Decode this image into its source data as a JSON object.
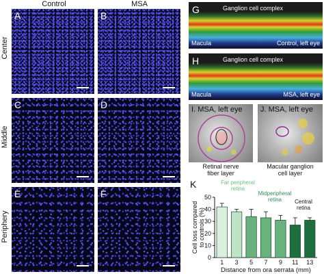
{
  "columns": {
    "control": "Control",
    "msa": "MSA"
  },
  "rows": {
    "center": "Center",
    "middle": "Middle",
    "periphery": "Periphery"
  },
  "panels": {
    "A": "A",
    "B": "B",
    "C": "C",
    "D": "D",
    "E": "E",
    "F": "F",
    "G": "G",
    "H": "H",
    "I": "I.",
    "J": "J.",
    "K": "K"
  },
  "oct_g": {
    "label": "Ganglion cell complex",
    "left": "Macula",
    "right": "Control, left eye"
  },
  "oct_h": {
    "label": "Ganglion cell complex",
    "left": "Macula",
    "right": "MSA, left eye"
  },
  "fundus_i": {
    "title": "MSA, left eye",
    "caption_line1": "Retinal nerve",
    "caption_line2": "fiber layer"
  },
  "fundus_j": {
    "title": "MSA, left eye",
    "caption_line1": "Macular ganglion",
    "caption_line2": "cell layer"
  },
  "chart_data": {
    "type": "bar",
    "categories": [
      "1",
      "3",
      "5",
      "7",
      "9",
      "11",
      "13"
    ],
    "values": [
      42,
      38,
      34,
      33,
      31,
      27,
      31
    ],
    "errors": [
      3,
      2,
      6,
      5,
      4,
      6,
      2
    ],
    "bar_colors": [
      "#d9f0df",
      "#bfe3c7",
      "#69b27e",
      "#69b27e",
      "#69b27e",
      "#1f6e3d",
      "#1f6e3d"
    ],
    "ylim": [
      0,
      50
    ],
    "yticks": [
      0,
      10,
      20,
      30,
      40,
      50
    ],
    "ylabel_line1": "Cell loss compared",
    "ylabel_line2": "to controls (%)",
    "xlabel": "Distance from ora serrata (mm)",
    "annotations": [
      {
        "line1": "Far peripheral",
        "line2": "retina",
        "color": "#6fbf7f"
      },
      {
        "line1": "Midperipheral",
        "line2": "retina",
        "color": "#2e8b57"
      },
      {
        "line1": "Central",
        "line2": "retina",
        "color": "#111111"
      }
    ]
  }
}
